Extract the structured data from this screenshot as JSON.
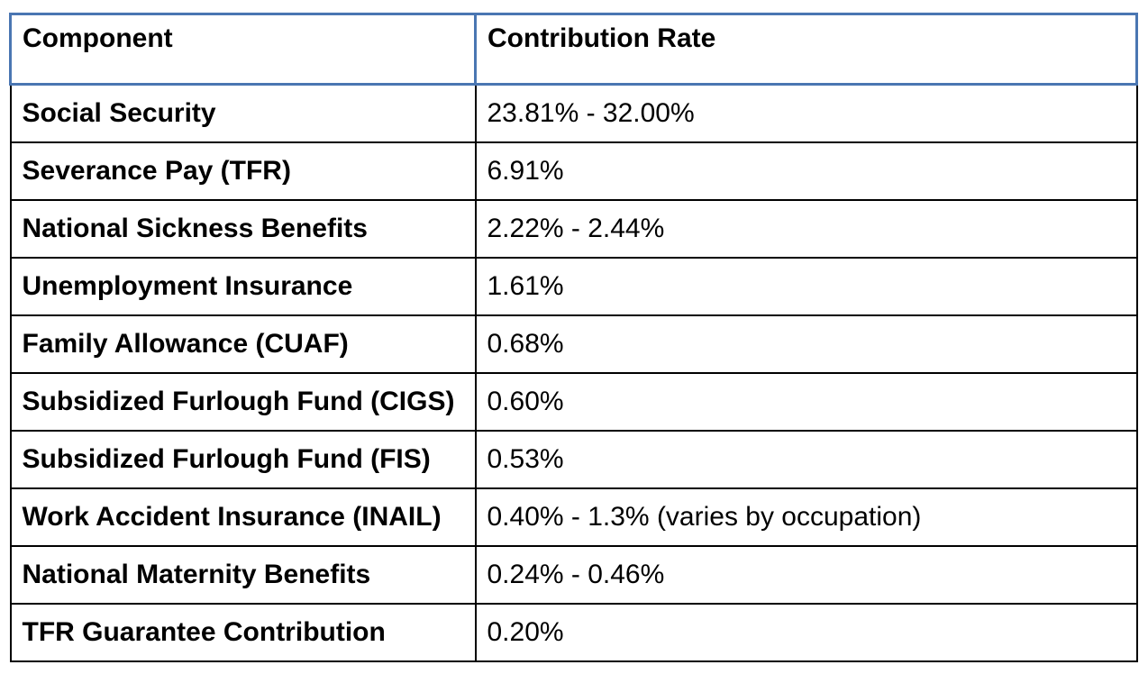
{
  "document": {
    "table": {
      "columns": [
        {
          "label": "Component"
        },
        {
          "label": "Contribution Rate"
        }
      ],
      "rows": [
        {
          "component": "Social Security",
          "rate": "23.81% - 32.00%"
        },
        {
          "component": "Severance Pay (TFR)",
          "rate": "6.91%"
        },
        {
          "component": "National Sickness Benefits",
          "rate": "2.22% - 2.44%"
        },
        {
          "component": "Unemployment Insurance",
          "rate": "1.61%"
        },
        {
          "component": "Family Allowance (CUAF)",
          "rate": "0.68%"
        },
        {
          "component": "Subsidized Furlough Fund (CIGS)",
          "rate": "0.60%"
        },
        {
          "component": "Subsidized Furlough Fund (FIS)",
          "rate": "0.53%"
        },
        {
          "component": "Work Accident Insurance (INAIL)",
          "rate": "0.40% - 1.3% (varies by occupation)"
        },
        {
          "component": "National Maternity Benefits",
          "rate": "0.24% - 0.46%"
        },
        {
          "component": "TFR Guarantee Contribution",
          "rate": "0.20%"
        }
      ]
    },
    "colors": {
      "header_border": "#4a76b2",
      "body_border": "#000000",
      "text": "#000000",
      "background": "#ffffff"
    }
  }
}
